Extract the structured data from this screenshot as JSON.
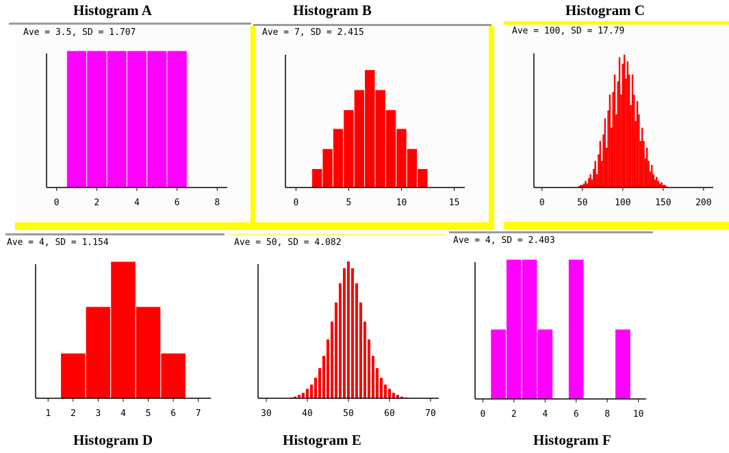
{
  "colors": {
    "magenta": "#ff00ff",
    "red": "#ff0000",
    "yellow": "#ffff00",
    "gray_rule": "#9a9a9a",
    "panel_bg": "#fcfcfc"
  },
  "chart_data": [
    {
      "id": "A",
      "type": "bar",
      "title": "Histogram A",
      "subtitle": "Ave = 3.5, SD = 1.707",
      "xlabel": "",
      "ylabel": "",
      "xlim": [
        -0.5,
        8.5
      ],
      "ylim": [
        0,
        1
      ],
      "xticks": [
        0,
        2,
        4,
        6,
        8
      ],
      "grid": false,
      "color": "#ff00ff",
      "bin_width": 1,
      "x": [
        1,
        2,
        3,
        4,
        5,
        6
      ],
      "values": [
        1,
        1,
        1,
        1,
        1,
        1
      ]
    },
    {
      "id": "B",
      "type": "bar",
      "title": "Histogram B",
      "subtitle": "Ave = 7, SD = 2.415",
      "xlabel": "",
      "ylabel": "",
      "xlim": [
        -1,
        16
      ],
      "ylim": [
        0,
        1.15
      ],
      "xticks": [
        0,
        5,
        10,
        15
      ],
      "grid": false,
      "color": "#ff0000",
      "bin_width": 1,
      "x": [
        2,
        3,
        4,
        5,
        6,
        7,
        8,
        9,
        10,
        11,
        12
      ],
      "values": [
        0.16,
        0.33,
        0.5,
        0.66,
        0.83,
        1.0,
        0.83,
        0.66,
        0.5,
        0.33,
        0.16
      ]
    },
    {
      "id": "C",
      "type": "bar",
      "title": "Histogram C",
      "subtitle": "Ave = 100, SD = 17.79",
      "xlabel": "",
      "ylabel": "",
      "xlim": [
        -10,
        212
      ],
      "ylim": [
        0,
        1.03
      ],
      "xticks": [
        0,
        50,
        100,
        150,
        200
      ],
      "grid": false,
      "color": "#ff0000",
      "bin_width": 2,
      "x": [
        46,
        48,
        50,
        52,
        54,
        56,
        58,
        60,
        62,
        64,
        66,
        68,
        70,
        72,
        74,
        76,
        78,
        80,
        82,
        84,
        86,
        88,
        90,
        92,
        94,
        96,
        98,
        100,
        102,
        104,
        106,
        108,
        110,
        112,
        114,
        116,
        118,
        120,
        122,
        124,
        126,
        128,
        130,
        132,
        134,
        136,
        138,
        140,
        142,
        144,
        146,
        148,
        150,
        152,
        154
      ],
      "values": [
        0.01,
        0.02,
        0.02,
        0.03,
        0.05,
        0.03,
        0.07,
        0.1,
        0.06,
        0.14,
        0.2,
        0.1,
        0.25,
        0.35,
        0.2,
        0.4,
        0.52,
        0.3,
        0.58,
        0.7,
        0.45,
        0.72,
        0.85,
        0.55,
        0.8,
        0.98,
        0.7,
        0.93,
        1.0,
        0.82,
        0.95,
        0.85,
        0.62,
        0.85,
        0.7,
        0.5,
        0.65,
        0.55,
        0.35,
        0.45,
        0.35,
        0.22,
        0.3,
        0.2,
        0.12,
        0.17,
        0.1,
        0.06,
        0.08,
        0.05,
        0.03,
        0.04,
        0.02,
        0.02,
        0.01
      ]
    },
    {
      "id": "D",
      "type": "bar",
      "title": "Histogram D",
      "subtitle": "Ave = 4, SD = 1.154",
      "xlabel": "",
      "ylabel": "",
      "xlim": [
        0.5,
        7.5
      ],
      "ylim": [
        0,
        1.0
      ],
      "xticks": [
        1,
        2,
        3,
        4,
        5,
        6,
        7
      ],
      "grid": false,
      "color": "#ff0000",
      "bin_width": 1,
      "x": [
        2,
        3,
        4,
        5,
        6
      ],
      "values": [
        0.33,
        0.67,
        1.0,
        0.67,
        0.33
      ]
    },
    {
      "id": "E",
      "type": "bar",
      "title": "Histogram E",
      "subtitle": "Ave = 50, SD = 4.082",
      "xlabel": "",
      "ylabel": "",
      "xlim": [
        28,
        72
      ],
      "ylim": [
        0,
        1.0
      ],
      "xticks": [
        30,
        40,
        50,
        60,
        70
      ],
      "grid": false,
      "color": "#ff0000",
      "bin_width": 1,
      "bar_fraction": 0.68,
      "x": [
        36,
        37,
        38,
        39,
        40,
        41,
        42,
        43,
        44,
        45,
        46,
        47,
        48,
        49,
        50,
        51,
        52,
        53,
        54,
        55,
        56,
        57,
        58,
        59,
        60,
        61,
        62,
        63,
        64
      ],
      "values": [
        0.005,
        0.012,
        0.025,
        0.04,
        0.07,
        0.1,
        0.15,
        0.22,
        0.31,
        0.43,
        0.56,
        0.7,
        0.84,
        0.95,
        1.0,
        0.95,
        0.84,
        0.7,
        0.56,
        0.43,
        0.31,
        0.22,
        0.15,
        0.1,
        0.07,
        0.04,
        0.025,
        0.012,
        0.005
      ]
    },
    {
      "id": "F",
      "type": "bar",
      "title": "Histogram F",
      "subtitle": "Ave = 4, SD = 2.403",
      "xlabel": "",
      "ylabel": "",
      "xlim": [
        -0.5,
        10.5
      ],
      "ylim": [
        0,
        1.0
      ],
      "xticks": [
        0,
        2,
        4,
        6,
        8,
        10
      ],
      "grid": false,
      "color": "#ff00ff",
      "bin_width": 1,
      "x": [
        1,
        2,
        3,
        4,
        6,
        9
      ],
      "values": [
        0.5,
        1.0,
        1.0,
        0.5,
        1.0,
        0.5
      ]
    }
  ]
}
